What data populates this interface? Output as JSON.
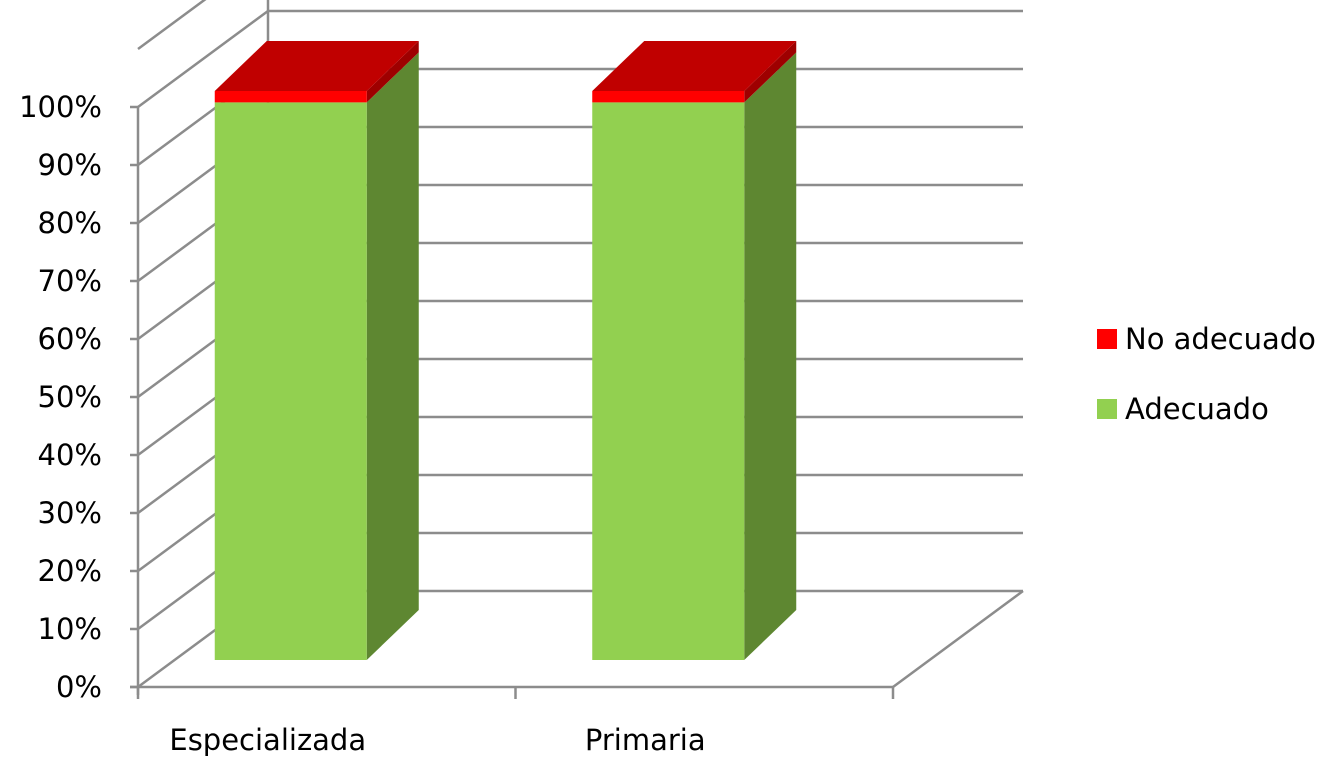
{
  "chart_data": {
    "type": "bar",
    "subtype": "stacked-100-percent-3d",
    "categories": [
      "Especializada",
      "Primaria"
    ],
    "series": [
      {
        "name": "Adecuado",
        "values": [
          98,
          98
        ],
        "color": "#92d050",
        "side_color": "#5e8731",
        "top_color": "#9fd463"
      },
      {
        "name": "No adecuado",
        "values": [
          2,
          2
        ],
        "color": "#ff0000",
        "side_color": "#9e0000",
        "top_color": "#c00000"
      }
    ],
    "yticks": [
      "0%",
      "10%",
      "20%",
      "30%",
      "40%",
      "50%",
      "60%",
      "70%",
      "80%",
      "90%",
      "100%"
    ],
    "ylim": [
      0,
      100
    ],
    "grid": true,
    "legend": {
      "placement": "right",
      "order": [
        "No adecuado",
        "Adecuado"
      ]
    }
  }
}
